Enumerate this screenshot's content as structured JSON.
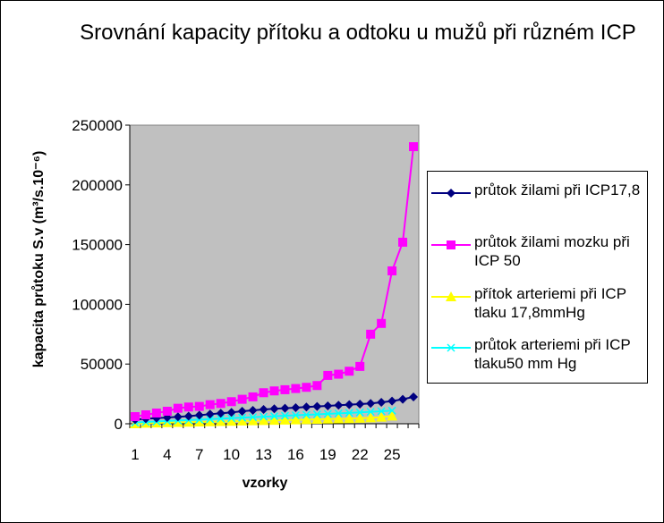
{
  "chart_data": {
    "type": "line",
    "title": "Srovnání kapacity přítoku a odtoku u mužů při různém ICP",
    "xlabel": "vzorky",
    "ylabel": "kapacita průtoku S.v (m³/s.10⁻⁶)",
    "ylim": [
      0,
      250000
    ],
    "yticks": [
      "0",
      "50000",
      "100000",
      "150000",
      "200000",
      "250000"
    ],
    "xtick_labels": [
      "1",
      "4",
      "7",
      "10",
      "13",
      "16",
      "19",
      "22",
      "25"
    ],
    "x": [
      1,
      2,
      3,
      4,
      5,
      6,
      7,
      8,
      9,
      10,
      11,
      12,
      13,
      14,
      15,
      16,
      17,
      18,
      19,
      20,
      21,
      22,
      23,
      24,
      25,
      26,
      27
    ],
    "grid": false,
    "plot_background": "#c0c0c0",
    "legend_position": "right",
    "series": [
      {
        "name": "průtok žilami při ICP17,8",
        "color": "#000080",
        "marker": "diamond",
        "values": [
          3500,
          4200,
          4700,
          5200,
          5800,
          6400,
          7200,
          8000,
          8800,
          9500,
          10500,
          11200,
          12000,
          12500,
          13000,
          13500,
          14000,
          14500,
          15000,
          15500,
          16000,
          16500,
          17000,
          18000,
          19000,
          20500,
          22500
        ]
      },
      {
        "name": "průtok žilami mozku při ICP 50",
        "color": "#ff00ff",
        "marker": "square",
        "values": [
          6000,
          7500,
          9000,
          10500,
          13000,
          14000,
          14500,
          16000,
          17000,
          18500,
          20500,
          22500,
          26000,
          27500,
          28500,
          29500,
          30500,
          32000,
          40500,
          41500,
          44000,
          48000,
          75000,
          84000,
          128000,
          152000,
          232000
        ]
      },
      {
        "name": "přítok arteriemi při ICP tlaku 17,8mmHg",
        "color": "#ffff00",
        "marker": "triangle",
        "values": [
          0,
          500,
          700,
          900,
          1100,
          1300,
          1500,
          1700,
          1900,
          2100,
          2300,
          2500,
          2700,
          2900,
          3100,
          3300,
          3500,
          3700,
          3900,
          4100,
          4300,
          4600,
          5000,
          5500,
          6500,
          null,
          null
        ]
      },
      {
        "name": "průtok arteriemi při ICP tlaku50 mm Hg",
        "color": "#00ffff",
        "marker": "x",
        "values": [
          1000,
          1500,
          1900,
          2300,
          2700,
          3100,
          3500,
          3900,
          4300,
          4700,
          5100,
          5500,
          5900,
          6300,
          6700,
          7100,
          7500,
          7900,
          8300,
          8700,
          9100,
          9500,
          10000,
          10500,
          11000,
          null,
          null
        ]
      }
    ]
  }
}
